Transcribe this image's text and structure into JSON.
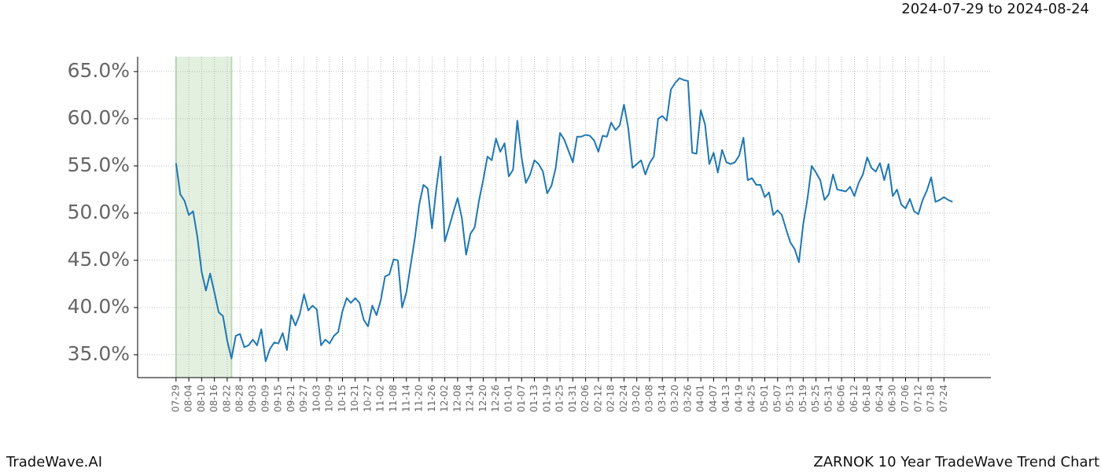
{
  "chart_data": {
    "type": "line",
    "title": "2024-07-29 to 2024-08-24",
    "footer_left": "TradeWave.AI",
    "footer_right": "ZARNOK 10 Year TradeWave Trend Chart",
    "color": "#1f77b4",
    "highlight_color": "#e3f0e0",
    "highlight_range": [
      0,
      13
    ],
    "grid": true,
    "ylim": [
      32.58,
      66.58
    ],
    "yticks": [
      {
        "value": 35,
        "label": "35.0%"
      },
      {
        "value": 40,
        "label": "40.0%"
      },
      {
        "value": 45,
        "label": "45.0%"
      },
      {
        "value": 50,
        "label": "50.0%"
      },
      {
        "value": 55,
        "label": "55.0%"
      },
      {
        "value": 60,
        "label": "60.0%"
      },
      {
        "value": 65,
        "label": "65.0%"
      }
    ],
    "categories": [
      "07-29",
      null,
      null,
      "08-04",
      null,
      null,
      "08-10",
      null,
      null,
      "08-16",
      null,
      null,
      "08-22",
      null,
      null,
      "08-28",
      null,
      null,
      "09-03",
      null,
      null,
      "09-09",
      null,
      null,
      "09-15",
      null,
      null,
      "09-21",
      null,
      null,
      "09-27",
      null,
      null,
      "10-03",
      null,
      null,
      "10-09",
      null,
      null,
      "10-15",
      null,
      null,
      "10-21",
      null,
      null,
      "10-27",
      null,
      null,
      "11-02",
      null,
      null,
      "11-08",
      null,
      null,
      "11-14",
      null,
      null,
      "11-20",
      null,
      null,
      "11-26",
      null,
      null,
      "12-02",
      null,
      null,
      "12-08",
      null,
      null,
      "12-14",
      null,
      null,
      "12-20",
      null,
      null,
      "12-26",
      null,
      null,
      "01-01",
      null,
      null,
      "01-07",
      null,
      null,
      "01-13",
      null,
      null,
      "01-19",
      null,
      null,
      "01-25",
      null,
      null,
      "01-31",
      null,
      null,
      "02-06",
      null,
      null,
      "02-12",
      null,
      null,
      "02-18",
      null,
      null,
      "02-24",
      null,
      null,
      "03-02",
      null,
      null,
      "03-08",
      null,
      null,
      "03-14",
      null,
      null,
      "03-20",
      null,
      null,
      "03-26",
      null,
      null,
      "04-01",
      null,
      null,
      "04-07",
      null,
      null,
      "04-13",
      null,
      null,
      "04-19",
      null,
      null,
      "04-25",
      null,
      null,
      "05-01",
      null,
      null,
      "05-07",
      null,
      null,
      "05-13",
      null,
      null,
      "05-19",
      null,
      null,
      "05-25",
      null,
      null,
      "05-31",
      null,
      null,
      "06-06",
      null,
      null,
      "06-12",
      null,
      null,
      "06-18",
      null,
      null,
      "06-24",
      null,
      null,
      "06-30",
      null,
      null,
      "07-06",
      null,
      null,
      "07-12",
      null,
      null,
      "07-18",
      null,
      null,
      "07-24",
      null,
      null
    ],
    "values": [
      55.3,
      52,
      51.3,
      49.8,
      50.2,
      47.5,
      43.8,
      41.8,
      43.6,
      41.6,
      39.5,
      39.1,
      36.5,
      34.6,
      37,
      37.2,
      35.8,
      36,
      36.6,
      36,
      37.7,
      34.3,
      35.6,
      36.3,
      36.2,
      37.3,
      35.5,
      39.2,
      38.1,
      39.3,
      41.4,
      39.7,
      40.2,
      39.8,
      36,
      36.6,
      36.2,
      37,
      37.4,
      39.6,
      41,
      40.5,
      41,
      40.5,
      38.7,
      38,
      40.2,
      39.2,
      40.8,
      43.3,
      43.5,
      45.1,
      45,
      40,
      41.6,
      44.5,
      47.4,
      50.9,
      53,
      52.6,
      48.4,
      52.6,
      56,
      47,
      48.5,
      50.1,
      51.6,
      49.5,
      45.6,
      47.8,
      48.5,
      51.3,
      53.5,
      56,
      55.6,
      57.9,
      56.5,
      57.4,
      53.9,
      54.6,
      59.8,
      55.9,
      53.2,
      54.1,
      55.6,
      55.2,
      54.4,
      52.1,
      52.9,
      54.8,
      58.5,
      57.8,
      56.6,
      55.4,
      58.1,
      58.1,
      58.3,
      58.2,
      57.7,
      56.5,
      58.2,
      58.1,
      59.6,
      58.8,
      59.3,
      61.5,
      59,
      54.8,
      55.2,
      55.6,
      54.1,
      55.3,
      56,
      60,
      60.3,
      59.8,
      63.1,
      63.8,
      64.3,
      64.1,
      64,
      56.4,
      56.3,
      60.9,
      59.4,
      55.2,
      56.4,
      54.3,
      56.7,
      55.4,
      55.2,
      55.4,
      56.1,
      58,
      53.5,
      53.7,
      53,
      53,
      51.7,
      52.2,
      49.8,
      50.3,
      49.8,
      48.3,
      46.9,
      46.2,
      44.8,
      48.8,
      51.5,
      55,
      54.3,
      53.5,
      51.4,
      52,
      54.1,
      52.5,
      52.4,
      52.3,
      52.8,
      51.8,
      53.2,
      54.1,
      55.9,
      54.8,
      54.4,
      55.3,
      53.5,
      55.2,
      51.8,
      52.5,
      50.9,
      50.5,
      51.5,
      50.2,
      49.9,
      51.4,
      52.4,
      53.8,
      51.2,
      51.4,
      51.7,
      51.4,
      51.2
    ]
  }
}
